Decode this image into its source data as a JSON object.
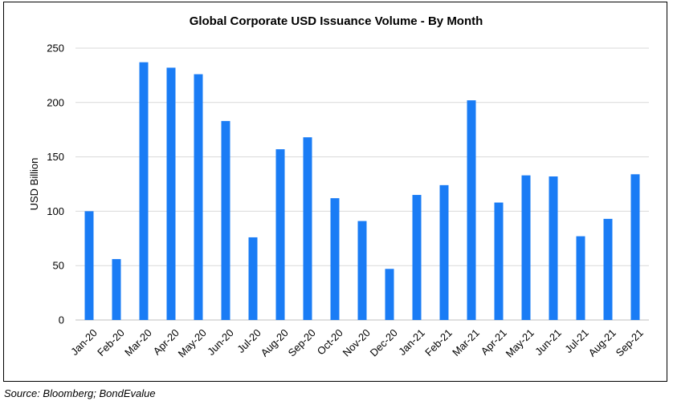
{
  "chart_data": {
    "type": "bar",
    "title": "Global Corporate USD Issuance Volume - By Month",
    "xlabel": "",
    "ylabel": "USD Billion",
    "ylim": [
      0,
      250
    ],
    "yticks": [
      0,
      50,
      100,
      150,
      200,
      250
    ],
    "grid": true,
    "bar_color": "#1a7cf5",
    "categories": [
      "Jan-20",
      "Feb-20",
      "Mar-20",
      "Apr-20",
      "May-20",
      "Jun-20",
      "Jul-20",
      "Aug-20",
      "Sep-20",
      "Oct-20",
      "Nov-20",
      "Dec-20",
      "Jan-21",
      "Feb-21",
      "Mar-21",
      "Apr-21",
      "May-21",
      "Jun-21",
      "Jul-21",
      "Aug-21",
      "Sep-21"
    ],
    "values": [
      100,
      56,
      237,
      232,
      226,
      183,
      76,
      157,
      168,
      112,
      91,
      47,
      115,
      124,
      202,
      108,
      133,
      132,
      77,
      93,
      134
    ]
  },
  "footer": {
    "source": "Source: Bloomberg; BondEvalue"
  }
}
